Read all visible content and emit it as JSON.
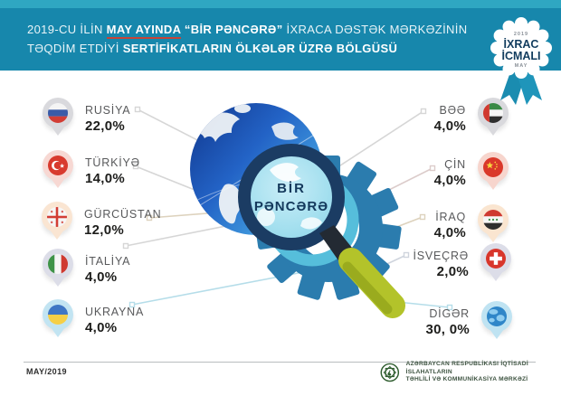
{
  "header": {
    "line1_prefix": "2019-CU İLİN ",
    "line1_highlight": "MAY AYINDA",
    "line1_mid": " “BİR PƏNCƏRƏ”",
    "line1_suffix": " İXRACA DƏSTƏK MƏRKƏZİNİN",
    "line2_prefix": "TƏQDİM ETDİYİ ",
    "line2_bold": "SERTİFİKATLARIN ÖLKƏLƏR ÜZRƏ BÖLGÜSÜ"
  },
  "badge": {
    "year": "2019",
    "line1": "İXRAC",
    "line2": "İCMALI",
    "month": "MAY"
  },
  "center": {
    "lens_line1": "BİR",
    "lens_line2": "PƏNCƏRƏ"
  },
  "left_items": [
    {
      "name": "RUSİYA",
      "value": "22,0%",
      "flag": "russia-flag-icon"
    },
    {
      "name": "TÜRKİYƏ",
      "value": "14,0%",
      "flag": "turkey-flag-icon"
    },
    {
      "name": "GÜRCÜSTAN",
      "value": "12,0%",
      "flag": "georgia-flag-icon"
    },
    {
      "name": "İTALİYA",
      "value": "4,0%",
      "flag": "italy-flag-icon"
    },
    {
      "name": "UKRAYNA",
      "value": "4,0%",
      "flag": "ukraine-flag-icon"
    }
  ],
  "right_items": [
    {
      "name": "BƏƏ",
      "value": "4,0%",
      "flag": "uae-flag-icon"
    },
    {
      "name": "ÇİN",
      "value": "4,0%",
      "flag": "china-flag-icon"
    },
    {
      "name": "İRAQ",
      "value": "4,0%",
      "flag": "iraq-flag-icon"
    },
    {
      "name": "İSVEÇRƏ",
      "value": "2,0%",
      "flag": "switzerland-flag-icon"
    },
    {
      "name": "DİGƏR",
      "value": "30, 0%",
      "flag": "globe-icon"
    }
  ],
  "footer": {
    "date": "MAY/2019",
    "org_line1": "AZƏRBAYCAN RESPUBLİKASI İQTİSADİ İSLAHATLARIN",
    "org_line2": "TƏHLİLİ VƏ KOMMUNİKASİYA MƏRKƏZİ"
  },
  "colors": {
    "top_strip_teal": "#2fa7c2",
    "banner_blue": "#1787ac",
    "underline_red": "#c64437",
    "gear_blue": "#2b7cae",
    "lens_ring_navy": "#1b3c63",
    "lens_glass_blue": "#9fd8e8",
    "handle_lime": "#b3c32a",
    "footer_green": "#3d5340"
  },
  "chart_data": {
    "type": "pie",
    "title": "2019-cu ilin may ayında “Bir Pəncərə” İxraca Dəstək Mərkəzinin təqdim etdiyi sertifikatların ölkələr üzrə bölgüsü",
    "categories": [
      "RUSİYA",
      "TÜRKİYƏ",
      "GÜRCÜSTAN",
      "İTALİYA",
      "UKRAYNA",
      "BƏƏ",
      "ÇİN",
      "İRAQ",
      "İSVEÇRƏ",
      "DİGƏR"
    ],
    "values": [
      22.0,
      14.0,
      12.0,
      4.0,
      4.0,
      4.0,
      4.0,
      4.0,
      2.0,
      30.0
    ],
    "unit": "%",
    "legend_position": "around-center",
    "period": "MAY/2019"
  }
}
